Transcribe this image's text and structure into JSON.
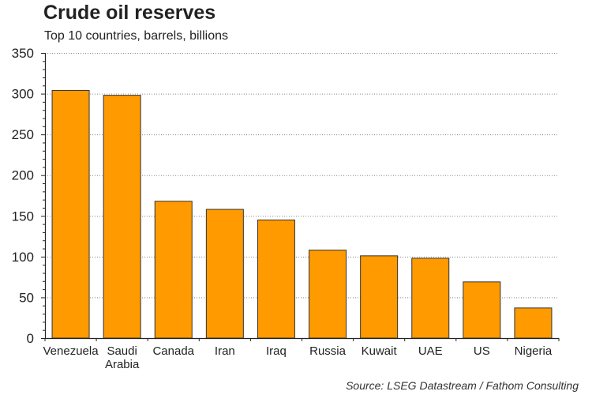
{
  "colors": {
    "bar": "#FF9A00",
    "bar_stroke": "#333333",
    "grid": "#888888",
    "axis": "#222222",
    "text": "#222222"
  },
  "chart_data": {
    "type": "bar",
    "title": "Crude oil reserves",
    "subtitle": "Top 10 countries, barrels, billions",
    "source": "Source: LSEG Datastream / Fathom Consulting",
    "categories": [
      [
        "Venezuela"
      ],
      [
        "Saudi",
        "Arabia"
      ],
      [
        "Canada"
      ],
      [
        "Iran"
      ],
      [
        "Iraq"
      ],
      [
        "Russia"
      ],
      [
        "Kuwait"
      ],
      [
        "UAE"
      ],
      [
        "US"
      ],
      [
        "Nigeria"
      ]
    ],
    "values": [
      304,
      298,
      168,
      158,
      145,
      108,
      101,
      98,
      69,
      37
    ],
    "ylim": [
      0,
      350
    ],
    "yticks": [
      0,
      50,
      100,
      150,
      200,
      250,
      300,
      350
    ],
    "grid": true,
    "xlabel": "",
    "ylabel": ""
  }
}
